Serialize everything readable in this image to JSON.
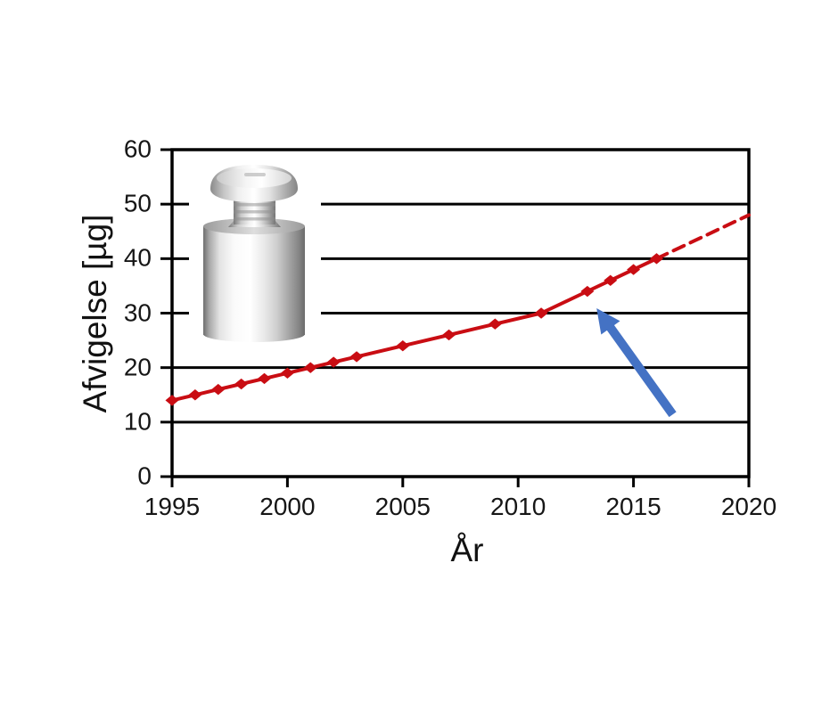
{
  "page": {
    "background_color": "#ffffff"
  },
  "chart_data": {
    "type": "line",
    "title": "",
    "xlabel": "År",
    "ylabel": "Afvigelse [µg]",
    "xlim": [
      1995,
      2020
    ],
    "ylim": [
      0,
      60
    ],
    "xticks": [
      1995,
      2000,
      2005,
      2010,
      2015,
      2020
    ],
    "yticks": [
      0,
      10,
      20,
      30,
      40,
      50,
      60
    ],
    "grid": "horizontal",
    "legend": "none",
    "axis_color": "#000000",
    "text_color": "#161616",
    "series": [
      {
        "name": "afvigelse-measured",
        "style": "solid",
        "marker": "diamond",
        "color": "#c90d13",
        "x": [
          1995,
          1996,
          1997,
          1998,
          1999,
          2000,
          2001,
          2002,
          2003,
          2005,
          2007,
          2009,
          2011,
          2013,
          2014,
          2015,
          2016
        ],
        "y": [
          14,
          15,
          16,
          17,
          18,
          19,
          20,
          21,
          22,
          24,
          26,
          28,
          30,
          34,
          36,
          38,
          40
        ]
      },
      {
        "name": "afvigelse-extrapolation",
        "style": "dashed",
        "marker": "none",
        "color": "#c90d13",
        "x": [
          2016,
          2020
        ],
        "y": [
          40,
          48
        ]
      }
    ],
    "annotations": [
      {
        "type": "arrow",
        "name": "slope-change-arrow",
        "color": "#4472c4",
        "from_xy": [
          2016.7,
          11.4
        ],
        "to_xy": [
          2013.4,
          30.9
        ]
      }
    ],
    "inset_image": {
      "name": "calibration-weight",
      "description": "stainless steel calibration weight photo"
    }
  }
}
